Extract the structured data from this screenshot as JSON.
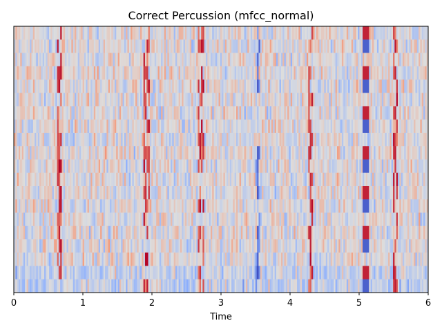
{
  "chart_data": {
    "type": "heatmap",
    "title": "Correct Percussion (mfcc_normal)",
    "xlabel": "Time",
    "ylabel": "",
    "xlim": [
      0,
      6
    ],
    "xticks": [
      "0",
      "1",
      "2",
      "3",
      "4",
      "5",
      "6"
    ],
    "colormap": "coolwarm",
    "colormap_stops": [
      "#3b4cc0",
      "#8db0fe",
      "#dddddd",
      "#f49a7b",
      "#b40426"
    ],
    "n_coefficients": 20,
    "n_frames": 259,
    "value_range": [
      -1,
      1
    ],
    "grid": false,
    "notes_strong_frames": [
      {
        "time": 0.66,
        "polarity": "positive"
      },
      {
        "time": 1.92,
        "polarity": "positive"
      },
      {
        "time": 2.71,
        "polarity": "positive"
      },
      {
        "time": 3.53,
        "polarity": "negative"
      },
      {
        "time": 4.3,
        "polarity": "positive"
      },
      {
        "time": 5.1,
        "polarity": "mixed"
      },
      {
        "time": 5.52,
        "polarity": "positive"
      }
    ]
  }
}
